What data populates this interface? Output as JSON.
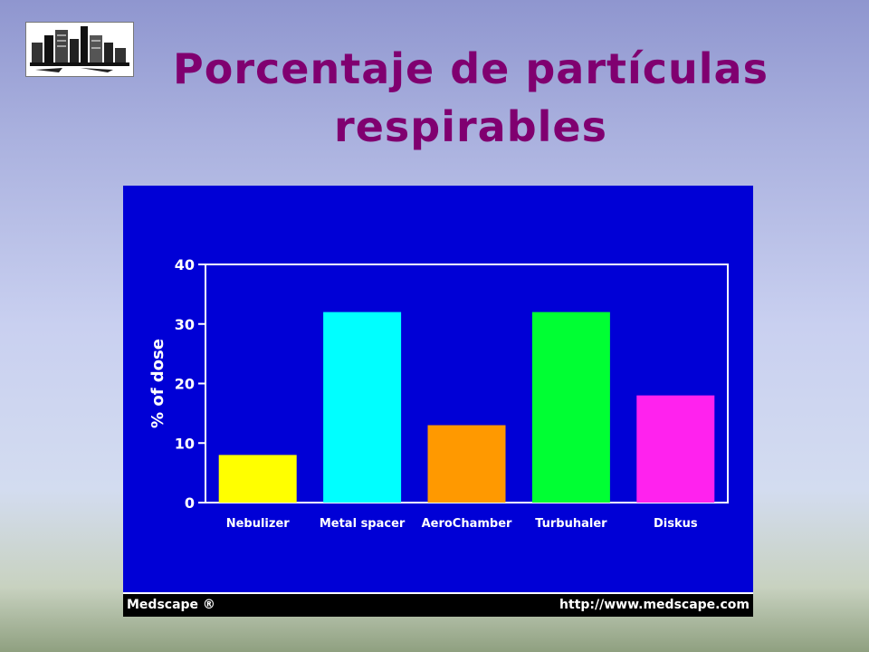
{
  "slide": {
    "title": "Porcentaje de partículas respirables",
    "logo_icon": "buildings-logo-icon"
  },
  "footer": {
    "brand": "Medscape ®",
    "url": "http://www.medscape.com"
  },
  "colors": {
    "title": "#800070",
    "chart_background": "#0000d6",
    "axis": "#ffffff"
  },
  "chart_data": {
    "type": "bar",
    "title": "",
    "xlabel": "",
    "ylabel": "% of dose",
    "ylim": [
      0,
      40
    ],
    "yticks": [
      0,
      10,
      20,
      30,
      40
    ],
    "grid": false,
    "categories": [
      "Nebulizer",
      "Metal spacer",
      "AeroChamber",
      "Turbuhaler",
      "Diskus"
    ],
    "values": [
      8,
      32,
      13,
      32,
      18
    ],
    "bar_colors": [
      "#ffff00",
      "#00ffff",
      "#ff9900",
      "#00ff33",
      "#ff22ee"
    ]
  }
}
